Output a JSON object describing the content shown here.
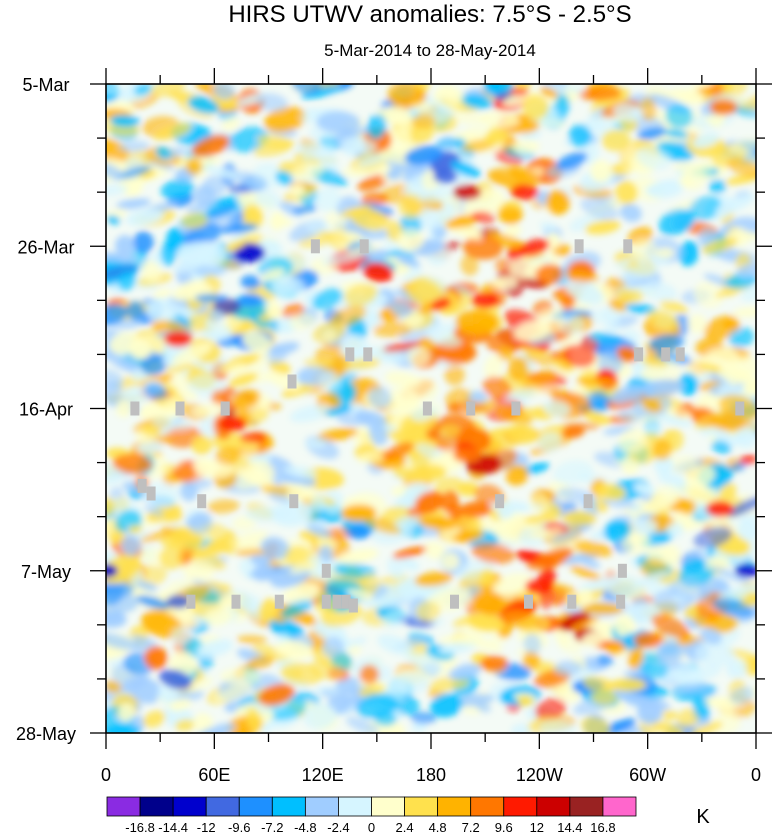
{
  "chart_data": {
    "type": "heatmap",
    "title": "HIRS UTWV anomalies: 7.5°S - 2.5°S",
    "subtitle": "5-Mar-2014 to 28-May-2014",
    "x_axis": {
      "ticks": [
        {
          "lon": 0,
          "label": "0"
        },
        {
          "lon": 60,
          "label": "60E"
        },
        {
          "lon": 120,
          "label": "120E"
        },
        {
          "lon": 180,
          "label": "180"
        },
        {
          "lon": 240,
          "label": "120W"
        },
        {
          "lon": 300,
          "label": "60W"
        },
        {
          "lon": 360,
          "label": "0"
        }
      ],
      "range": [
        0,
        360
      ]
    },
    "y_axis": {
      "ticks": [
        {
          "day": 0,
          "label": "5-Mar"
        },
        {
          "day": 21,
          "label": "26-Mar"
        },
        {
          "day": 42,
          "label": "16-Apr"
        },
        {
          "day": 63,
          "label": "7-May"
        },
        {
          "day": 84,
          "label": "28-May"
        }
      ],
      "range": [
        0,
        84
      ],
      "direction": "downward"
    },
    "colorbar": {
      "unit": "K",
      "levels": [
        "-16.8",
        "-14.4",
        "-12",
        "-9.6",
        "-7.2",
        "-4.8",
        "-2.4",
        "0",
        "2.4",
        "4.8",
        "7.2",
        "9.6",
        "12",
        "14.4",
        "16.8"
      ],
      "colors": [
        "#8a2be2",
        "#00008b",
        "#0000cd",
        "#4169e1",
        "#1e90ff",
        "#00bfff",
        "#a0cdff",
        "#d6f5ff",
        "#ffffcc",
        "#ffe14d",
        "#ffb300",
        "#ff7700",
        "#ff1a00",
        "#cc0000",
        "#992222",
        "#ff66cc"
      ]
    },
    "missing_color": "#bfbfbf"
  }
}
